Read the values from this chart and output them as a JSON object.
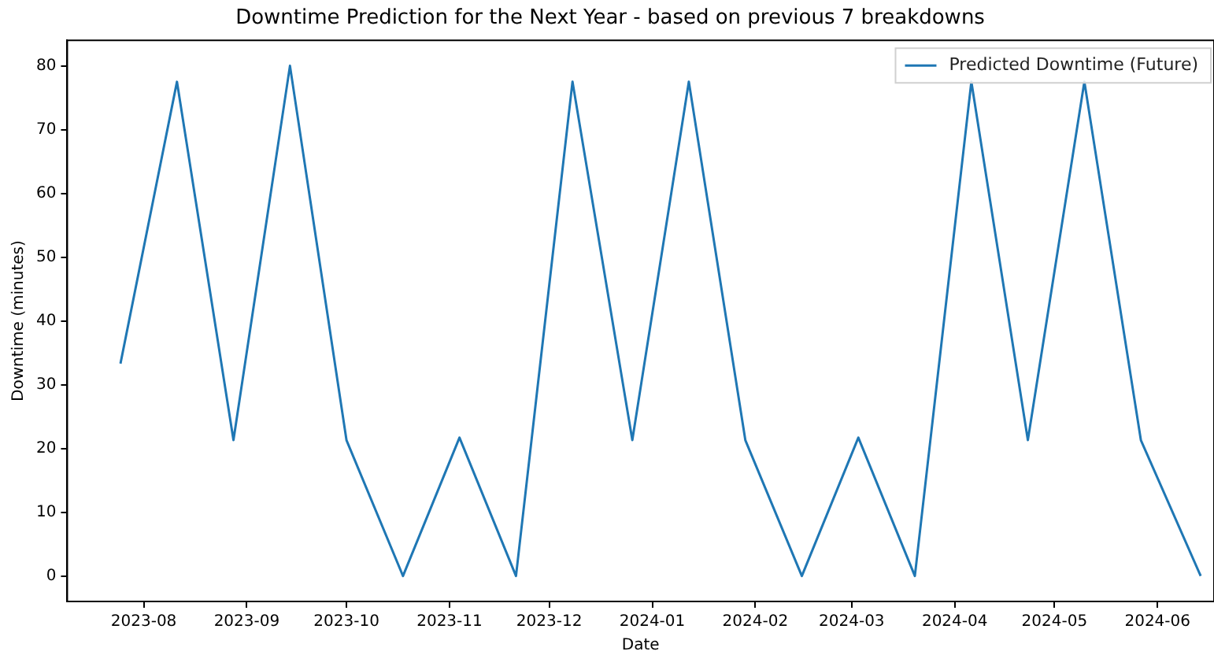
{
  "chart_data": {
    "type": "line",
    "title": "Downtime Prediction for the Next Year - based on previous 7 breakdowns",
    "xlabel": "Date",
    "ylabel": "Downtime (minutes)",
    "x": [
      "2023-07-25",
      "2023-08-11",
      "2023-08-28",
      "2023-09-14",
      "2023-10-01",
      "2023-10-18",
      "2023-11-04",
      "2023-11-21",
      "2023-12-08",
      "2023-12-26",
      "2024-01-12",
      "2024-01-29",
      "2024-02-15",
      "2024-03-03",
      "2024-03-20",
      "2024-04-06",
      "2024-04-23",
      "2024-05-10",
      "2024-05-27",
      "2024-06-14"
    ],
    "series": [
      {
        "name": "Predicted Downtime (Future)",
        "color": "#1f77b4",
        "values": [
          33.3,
          77.5,
          21.3,
          80,
          21.3,
          0,
          21.7,
          0,
          77.5,
          21.3,
          77.5,
          21.3,
          0,
          21.7,
          0,
          77.5,
          21.3,
          77.5,
          21.3,
          0
        ]
      }
    ],
    "xlim": [
      "2023-07-09",
      "2024-06-18"
    ],
    "ylim": [
      -4,
      84
    ],
    "xticks": [
      "2023-08",
      "2023-09",
      "2023-10",
      "2023-11",
      "2023-12",
      "2024-01",
      "2024-02",
      "2024-03",
      "2024-04",
      "2024-05",
      "2024-06"
    ],
    "yticks": [
      0,
      10,
      20,
      30,
      40,
      50,
      60,
      70,
      80
    ],
    "grid": false,
    "legend": "top right",
    "marker": "none",
    "line_style": "solid"
  }
}
